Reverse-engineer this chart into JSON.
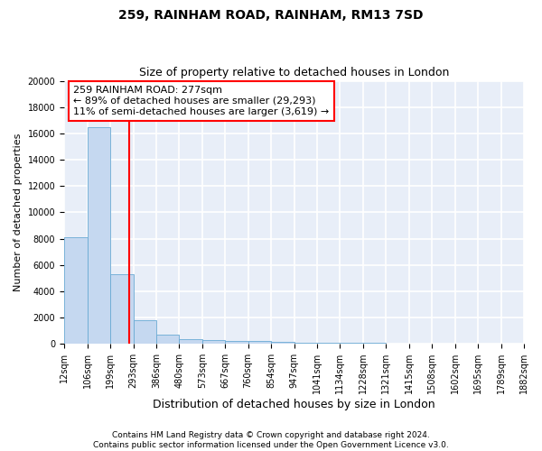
{
  "title": "259, RAINHAM ROAD, RAINHAM, RM13 7SD",
  "subtitle": "Size of property relative to detached houses in London",
  "xlabel": "Distribution of detached houses by size in London",
  "ylabel": "Number of detached properties",
  "bin_edges": [
    12,
    106,
    199,
    293,
    386,
    480,
    573,
    667,
    760,
    854,
    947,
    1041,
    1134,
    1228,
    1321,
    1415,
    1508,
    1602,
    1695,
    1789,
    1882
  ],
  "bar_heights": [
    8100,
    16500,
    5300,
    1800,
    700,
    350,
    280,
    220,
    200,
    150,
    100,
    80,
    60,
    50,
    40,
    30,
    25,
    20,
    15,
    10
  ],
  "bar_color": "#c5d8f0",
  "bar_edge_color": "#6aaad4",
  "vline_x": 277,
  "vline_color": "red",
  "annotation_line1": "259 RAINHAM ROAD: 277sqm",
  "annotation_line2": "← 89% of detached houses are smaller (29,293)",
  "annotation_line3": "11% of semi-detached houses are larger (3,619) →",
  "annotation_box_color": "red",
  "ylim": [
    0,
    20000
  ],
  "yticks": [
    0,
    2000,
    4000,
    6000,
    8000,
    10000,
    12000,
    14000,
    16000,
    18000,
    20000
  ],
  "xtick_labels": [
    "12sqm",
    "106sqm",
    "199sqm",
    "293sqm",
    "386sqm",
    "480sqm",
    "573sqm",
    "667sqm",
    "760sqm",
    "854sqm",
    "947sqm",
    "1041sqm",
    "1134sqm",
    "1228sqm",
    "1321sqm",
    "1415sqm",
    "1508sqm",
    "1602sqm",
    "1695sqm",
    "1789sqm",
    "1882sqm"
  ],
  "footer_line1": "Contains HM Land Registry data © Crown copyright and database right 2024.",
  "footer_line2": "Contains public sector information licensed under the Open Government Licence v3.0.",
  "plot_bg_color": "#e8eef8",
  "fig_bg_color": "#ffffff",
  "grid_color": "#ffffff",
  "title_fontsize": 10,
  "subtitle_fontsize": 9,
  "tick_fontsize": 7,
  "ylabel_fontsize": 8,
  "xlabel_fontsize": 9,
  "annotation_fontsize": 8,
  "footer_fontsize": 6.5
}
